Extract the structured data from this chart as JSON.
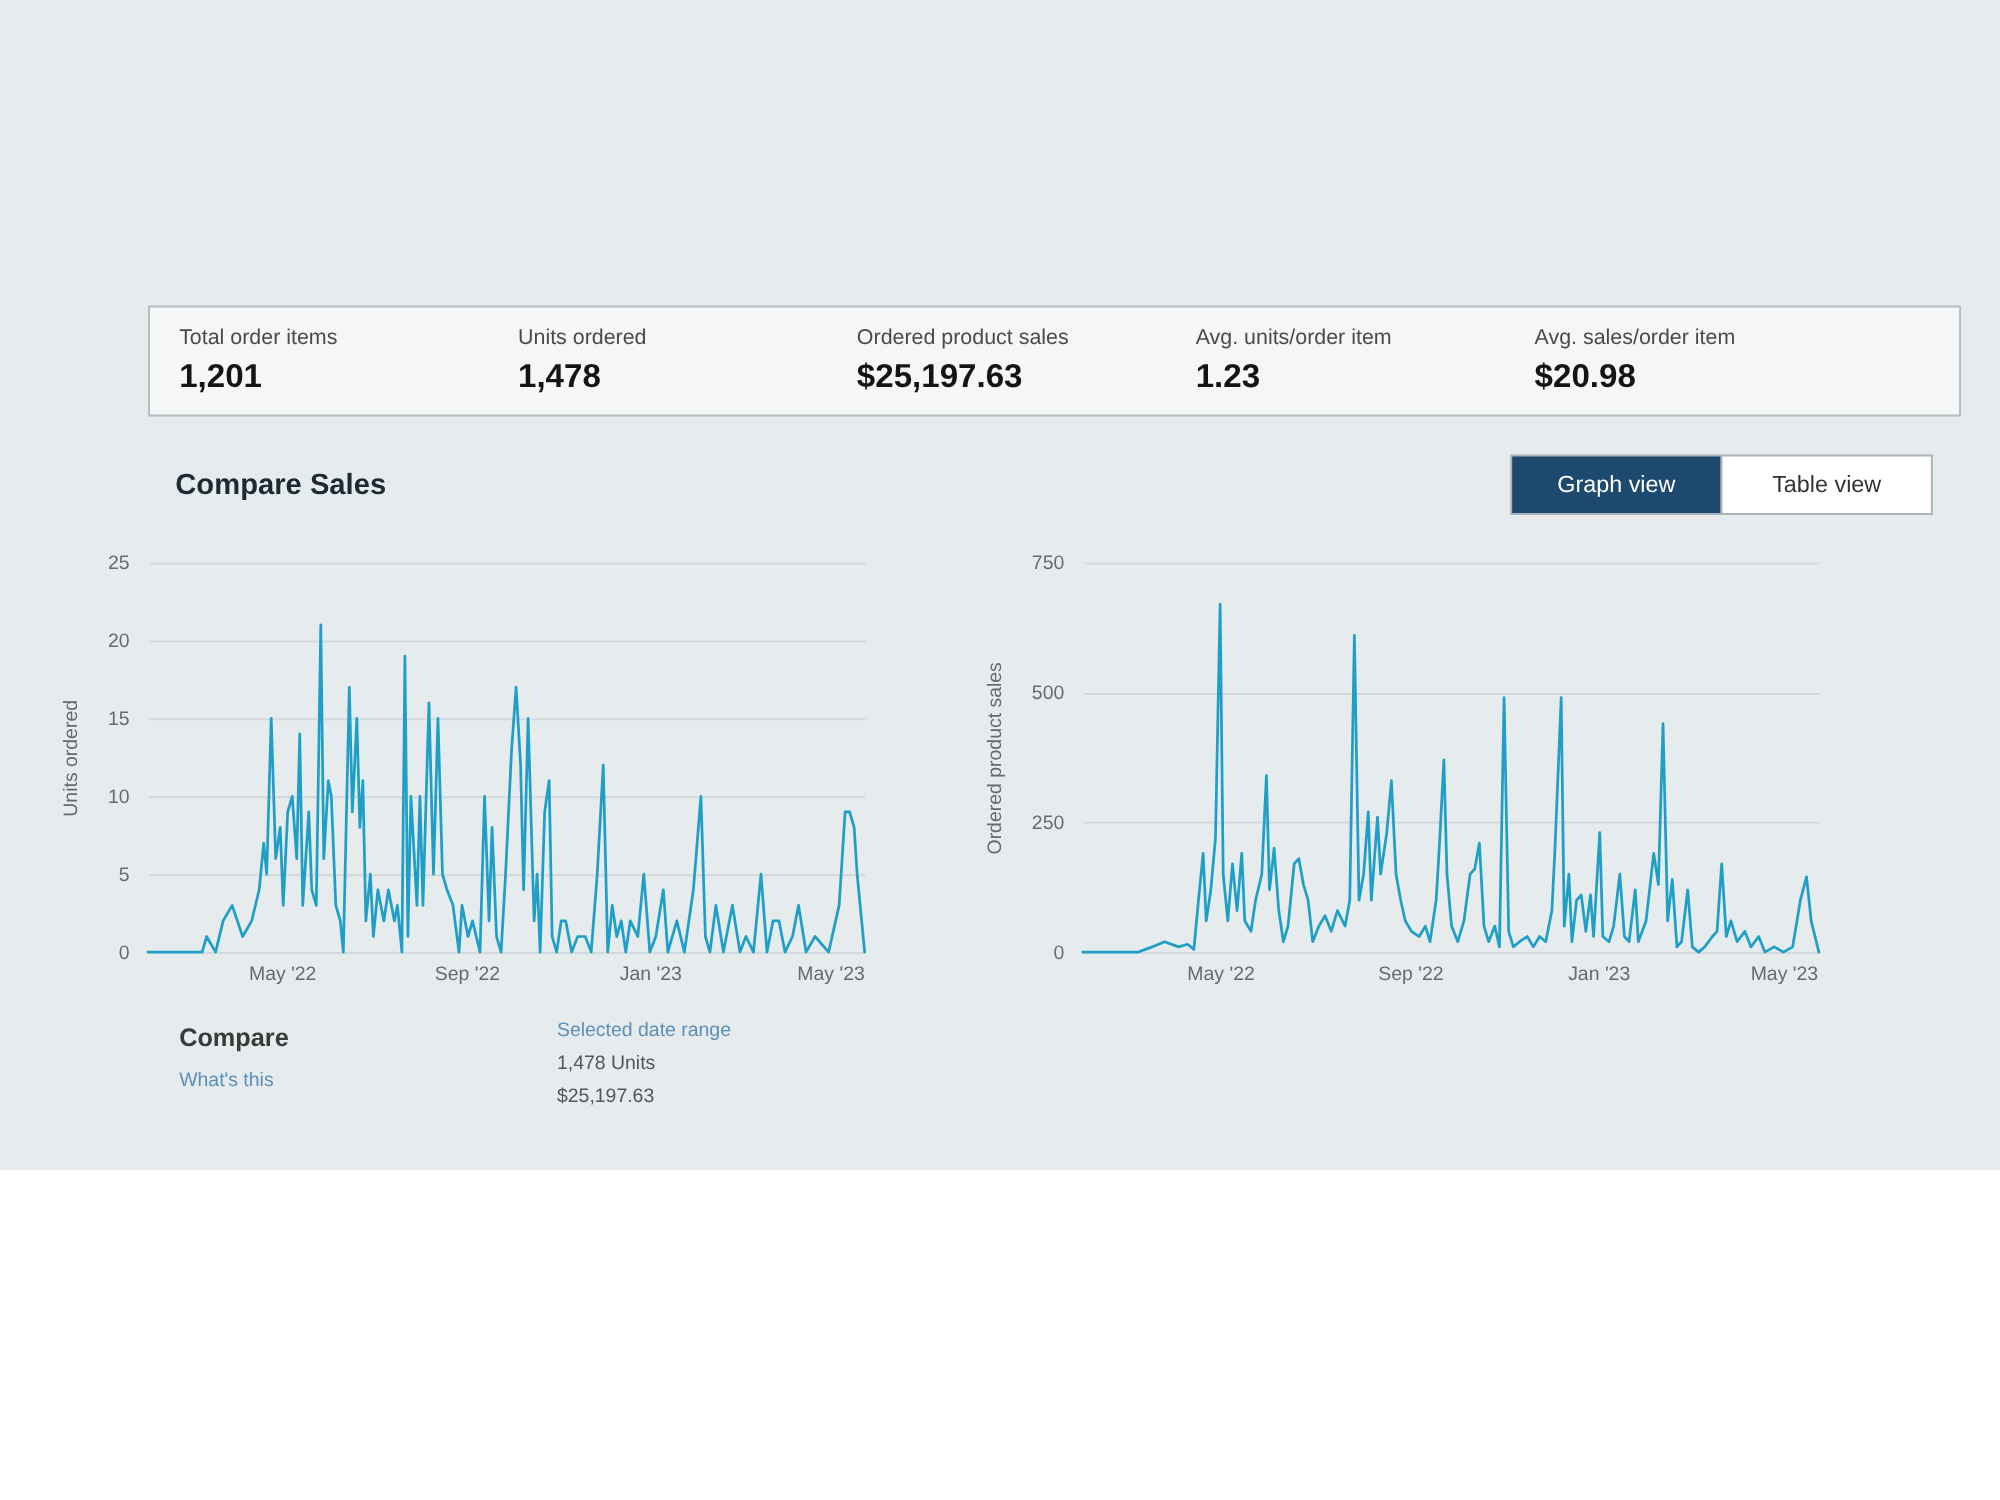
{
  "chart_data": [
    {
      "type": "other",
      "annotations": [
        "Total order items",
        "1,201",
        "Units ordered",
        "1,478",
        "Ordered product sales",
        "$25,197.63",
        "Avg. units/order item",
        "1.23",
        "Avg. sales/order item",
        "$20.98"
      ]
    },
    {
      "type": "other",
      "title": "Compare Sales",
      "annotations": [
        "Graph view",
        "Table view"
      ]
    },
    {
      "type": "line",
      "ylabel": "Units ordered",
      "color": "#1f9fc6",
      "grid": "y",
      "xlim": [
        "2022-02-01",
        "2023-05-24"
      ],
      "xticks": [
        {
          "value": "2022-05-01",
          "label": "May '22"
        },
        {
          "value": "2022-09-01",
          "label": "Sep '22"
        },
        {
          "value": "2023-01-01",
          "label": "Jan '23"
        },
        {
          "value": "2023-05-01",
          "label": "May '23"
        }
      ],
      "ylim": [
        0,
        25
      ],
      "yticks": [
        0,
        5,
        10,
        15,
        20,
        25
      ],
      "x": [
        "2022-02-01",
        "2022-03-09",
        "2022-03-12",
        "2022-03-18",
        "2022-03-23",
        "2022-03-29",
        "2022-04-05",
        "2022-04-11",
        "2022-04-16",
        "2022-04-19",
        "2022-04-21",
        "2022-04-24",
        "2022-04-27",
        "2022-04-30",
        "2022-05-02",
        "2022-05-05",
        "2022-05-08",
        "2022-05-11",
        "2022-05-13",
        "2022-05-15",
        "2022-05-19",
        "2022-05-21",
        "2022-05-24",
        "2022-05-27",
        "2022-05-29",
        "2022-06-01",
        "2022-06-03",
        "2022-06-06",
        "2022-06-09",
        "2022-06-11",
        "2022-06-15",
        "2022-06-17",
        "2022-06-20",
        "2022-06-22",
        "2022-06-24",
        "2022-06-26",
        "2022-06-29",
        "2022-07-01",
        "2022-07-04",
        "2022-07-08",
        "2022-07-11",
        "2022-07-15",
        "2022-07-17",
        "2022-07-20",
        "2022-07-22",
        "2022-07-24",
        "2022-07-26",
        "2022-07-30",
        "2022-08-01",
        "2022-08-03",
        "2022-08-07",
        "2022-08-10",
        "2022-08-13",
        "2022-08-16",
        "2022-08-19",
        "2022-08-23",
        "2022-08-27",
        "2022-08-29",
        "2022-09-02",
        "2022-09-05",
        "2022-09-10",
        "2022-09-13",
        "2022-09-16",
        "2022-09-18",
        "2022-09-21",
        "2022-09-24",
        "2022-09-27",
        "2022-10-01",
        "2022-10-04",
        "2022-10-07",
        "2022-10-09",
        "2022-10-12",
        "2022-10-16",
        "2022-10-18",
        "2022-10-20",
        "2022-10-23",
        "2022-10-26",
        "2022-10-28",
        "2022-10-31",
        "2022-11-03",
        "2022-11-06",
        "2022-11-10",
        "2022-11-14",
        "2022-11-19",
        "2022-11-23",
        "2022-11-27",
        "2022-12-01",
        "2022-12-04",
        "2022-12-07",
        "2022-12-10",
        "2022-12-13",
        "2022-12-16",
        "2022-12-19",
        "2022-12-24",
        "2022-12-28",
        "2023-01-01",
        "2023-01-05",
        "2023-01-10",
        "2023-01-13",
        "2023-01-19",
        "2023-01-24",
        "2023-01-30",
        "2023-02-04",
        "2023-02-07",
        "2023-02-10",
        "2023-02-14",
        "2023-02-19",
        "2023-02-25",
        "2023-03-02",
        "2023-03-06",
        "2023-03-11",
        "2023-03-16",
        "2023-03-20",
        "2023-03-24",
        "2023-03-28",
        "2023-04-01",
        "2023-04-06",
        "2023-04-10",
        "2023-04-15",
        "2023-04-21",
        "2023-04-30",
        "2023-05-07",
        "2023-05-11",
        "2023-05-14",
        "2023-05-17",
        "2023-05-19",
        "2023-05-24"
      ],
      "values": [
        0,
        0,
        1,
        0,
        2,
        3,
        1,
        2,
        4,
        7,
        5,
        15,
        6,
        8,
        3,
        9,
        10,
        6,
        14,
        3,
        9,
        4,
        3,
        21,
        6,
        11,
        10,
        3,
        2,
        0,
        17,
        9,
        15,
        8,
        11,
        2,
        5,
        1,
        4,
        2,
        4,
        2,
        3,
        0,
        19,
        1,
        10,
        3,
        10,
        3,
        16,
        5,
        15,
        5,
        4,
        3,
        0,
        3,
        1,
        2,
        0,
        10,
        2,
        8,
        1,
        0,
        5,
        13,
        17,
        12,
        4,
        15,
        2,
        5,
        0,
        9,
        11,
        1,
        0,
        2,
        2,
        0,
        1,
        1,
        0,
        5,
        12,
        0,
        3,
        1,
        2,
        0,
        2,
        1,
        5,
        0,
        1,
        4,
        0,
        2,
        0,
        4,
        10,
        1,
        0,
        3,
        0,
        3,
        0,
        1,
        0,
        5,
        0,
        2,
        2,
        0,
        1,
        3,
        0,
        1,
        0,
        3,
        9,
        9,
        8,
        5,
        0
      ]
    },
    {
      "type": "line",
      "ylabel": "Ordered product sales",
      "color": "#1f9fc6",
      "grid": "y",
      "xlim": [
        "2022-02-01",
        "2023-05-24"
      ],
      "xticks": [
        {
          "value": "2022-05-01",
          "label": "May '22"
        },
        {
          "value": "2022-09-01",
          "label": "Sep '22"
        },
        {
          "value": "2023-01-01",
          "label": "Jan '23"
        },
        {
          "value": "2023-05-01",
          "label": "May '23"
        }
      ],
      "ylim": [
        0,
        750
      ],
      "yticks": [
        0,
        250,
        500,
        750
      ],
      "x": [
        "2022-02-01",
        "2022-03-09",
        "2022-03-18",
        "2022-03-26",
        "2022-04-04",
        "2022-04-10",
        "2022-04-14",
        "2022-04-17",
        "2022-04-20",
        "2022-04-22",
        "2022-04-25",
        "2022-04-28",
        "2022-05-01",
        "2022-05-03",
        "2022-05-06",
        "2022-05-09",
        "2022-05-12",
        "2022-05-15",
        "2022-05-17",
        "2022-05-21",
        "2022-05-24",
        "2022-05-28",
        "2022-05-31",
        "2022-06-02",
        "2022-06-05",
        "2022-06-08",
        "2022-06-11",
        "2022-06-14",
        "2022-06-18",
        "2022-06-21",
        "2022-06-24",
        "2022-06-27",
        "2022-06-30",
        "2022-07-04",
        "2022-07-08",
        "2022-07-12",
        "2022-07-16",
        "2022-07-21",
        "2022-07-24",
        "2022-07-27",
        "2022-07-30",
        "2022-08-02",
        "2022-08-05",
        "2022-08-07",
        "2022-08-11",
        "2022-08-13",
        "2022-08-17",
        "2022-08-20",
        "2022-08-23",
        "2022-08-26",
        "2022-08-29",
        "2022-09-02",
        "2022-09-07",
        "2022-09-11",
        "2022-09-14",
        "2022-09-18",
        "2022-09-20",
        "2022-09-23",
        "2022-09-25",
        "2022-09-28",
        "2022-10-02",
        "2022-10-06",
        "2022-10-10",
        "2022-10-13",
        "2022-10-16",
        "2022-10-19",
        "2022-10-22",
        "2022-10-26",
        "2022-10-29",
        "2022-11-01",
        "2022-11-04",
        "2022-11-07",
        "2022-11-11",
        "2022-11-16",
        "2022-11-20",
        "2022-11-24",
        "2022-11-28",
        "2022-12-02",
        "2022-12-04",
        "2022-12-08",
        "2022-12-10",
        "2022-12-13",
        "2022-12-15",
        "2022-12-18",
        "2022-12-21",
        "2022-12-24",
        "2022-12-27",
        "2022-12-29",
        "2023-01-02",
        "2023-01-04",
        "2023-01-08",
        "2023-01-11",
        "2023-01-15",
        "2023-01-18",
        "2023-01-21",
        "2023-01-25",
        "2023-01-27",
        "2023-02-01",
        "2023-02-06",
        "2023-02-09",
        "2023-02-12",
        "2023-02-15",
        "2023-02-18",
        "2023-02-21",
        "2023-02-24",
        "2023-02-28",
        "2023-03-03",
        "2023-03-07",
        "2023-03-11",
        "2023-03-16",
        "2023-03-19",
        "2023-03-22",
        "2023-03-25",
        "2023-03-28",
        "2023-04-01",
        "2023-04-06",
        "2023-04-10",
        "2023-04-15",
        "2023-04-19",
        "2023-04-25",
        "2023-05-01",
        "2023-05-07",
        "2023-05-12",
        "2023-05-16",
        "2023-05-19",
        "2023-05-24"
      ],
      "values": [
        0,
        0,
        10,
        20,
        10,
        15,
        5,
        100,
        190,
        60,
        120,
        220,
        670,
        150,
        60,
        170,
        80,
        190,
        60,
        40,
        100,
        150,
        340,
        120,
        200,
        80,
        20,
        50,
        170,
        180,
        130,
        100,
        20,
        50,
        70,
        40,
        80,
        50,
        100,
        610,
        100,
        150,
        270,
        100,
        260,
        150,
        230,
        330,
        150,
        100,
        60,
        40,
        30,
        50,
        20,
        100,
        200,
        370,
        150,
        50,
        20,
        60,
        150,
        160,
        210,
        50,
        20,
        50,
        10,
        490,
        40,
        10,
        20,
        30,
        10,
        30,
        20,
        80,
        200,
        490,
        50,
        150,
        20,
        100,
        110,
        40,
        110,
        30,
        230,
        30,
        20,
        50,
        150,
        30,
        20,
        120,
        20,
        60,
        190,
        130,
        440,
        60,
        140,
        10,
        20,
        120,
        10,
        0,
        10,
        30,
        40,
        170,
        30,
        60,
        20,
        40,
        10,
        30,
        0,
        10,
        0,
        10,
        100,
        145,
        60,
        0
      ]
    },
    {
      "type": "other",
      "title": "Compare",
      "annotations": [
        "What's this",
        "Selected date range",
        "1,478 Units",
        "$25,197.63"
      ]
    }
  ]
}
